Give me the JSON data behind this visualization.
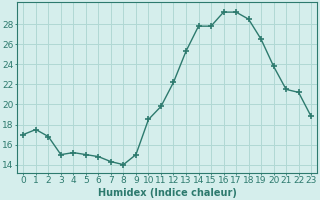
{
  "x": [
    0,
    1,
    2,
    3,
    4,
    5,
    6,
    7,
    8,
    9,
    10,
    11,
    12,
    13,
    14,
    15,
    16,
    17,
    18,
    19,
    20,
    21,
    22,
    23
  ],
  "y": [
    17.0,
    17.5,
    16.8,
    15.0,
    15.2,
    15.0,
    14.8,
    14.3,
    14.0,
    15.0,
    18.5,
    19.8,
    22.2,
    25.3,
    27.8,
    27.8,
    29.2,
    29.2,
    28.5,
    26.5,
    23.8,
    21.5,
    21.2,
    18.8
  ],
  "line_color": "#2d7a6e",
  "marker": "+",
  "markersize": 4,
  "markeredgewidth": 1.2,
  "linewidth": 1.0,
  "bg_color": "#d5eeec",
  "grid_color": "#b0d8d4",
  "xlabel": "Humidex (Indice chaleur)",
  "ylabel_ticks": [
    14,
    16,
    18,
    20,
    22,
    24,
    26,
    28
  ],
  "ylim": [
    13.2,
    30.2
  ],
  "xlim": [
    -0.5,
    23.5
  ],
  "xlabel_fontsize": 7,
  "tick_fontsize": 6.5
}
